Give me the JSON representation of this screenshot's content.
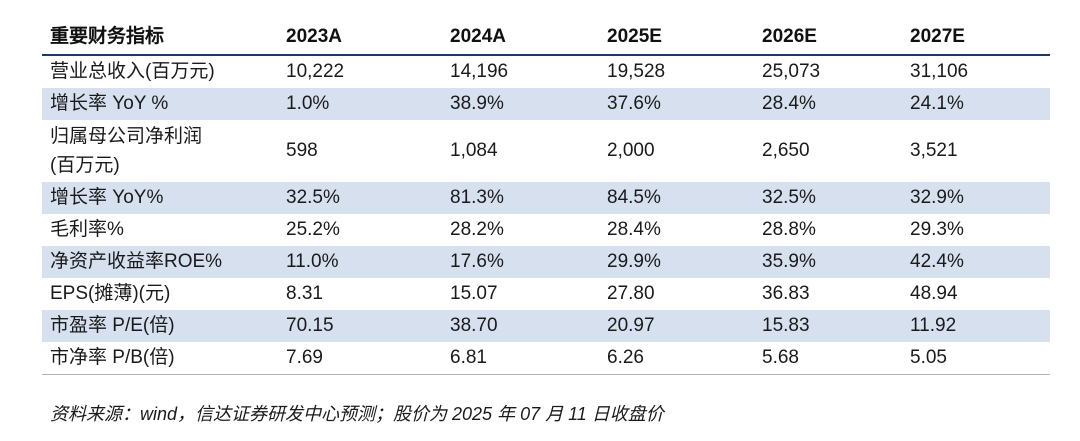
{
  "table": {
    "header": [
      "重要财务指标",
      "2023A",
      "2024A",
      "2025E",
      "2026E",
      "2027E"
    ],
    "rows": [
      {
        "label": "营业总收入(百万元)",
        "values": [
          "10,222",
          "14,196",
          "19,528",
          "25,073",
          "31,106"
        ]
      },
      {
        "label": "增长率 YoY %",
        "values": [
          "1.0%",
          "38.9%",
          "37.6%",
          "28.4%",
          "24.1%"
        ]
      },
      {
        "label": "归属母公司净利润(百万元)",
        "label_line1": "归属母公司净利润",
        "label_line2": "(百万元)",
        "values": [
          "598",
          "1,084",
          "2,000",
          "2,650",
          "3,521"
        ]
      },
      {
        "label": "增长率 YoY%",
        "values": [
          "32.5%",
          "81.3%",
          "84.5%",
          "32.5%",
          "32.9%"
        ]
      },
      {
        "label": "毛利率%",
        "values": [
          "25.2%",
          "28.2%",
          "28.4%",
          "28.8%",
          "29.3%"
        ]
      },
      {
        "label": "净资产收益率ROE%",
        "values": [
          "11.0%",
          "17.6%",
          "29.9%",
          "35.9%",
          "42.4%"
        ]
      },
      {
        "label": "EPS(摊薄)(元)",
        "values": [
          "8.31",
          "15.07",
          "27.80",
          "36.83",
          "48.94"
        ]
      },
      {
        "label": "市盈率 P/E(倍)",
        "values": [
          "70.15",
          "38.70",
          "20.97",
          "15.83",
          "11.92"
        ]
      },
      {
        "label": "市净率 P/B(倍)",
        "values": [
          "7.69",
          "6.81",
          "6.26",
          "5.68",
          "5.05"
        ]
      }
    ]
  },
  "source_note": "资料来源：wind，信达证券研发中心预测；股价为 2025 年 07 月 11 日收盘价",
  "colors": {
    "shade": "#d6e0ef",
    "header_rule": "#1f3864"
  }
}
